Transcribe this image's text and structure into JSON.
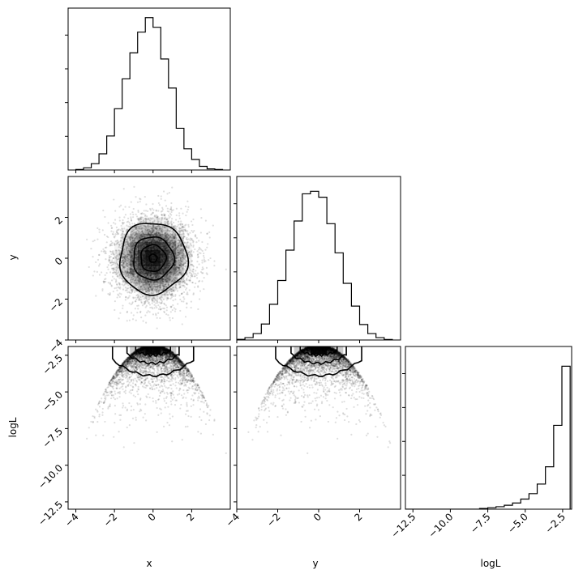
{
  "chart_data": {
    "type": "corner",
    "parameters": [
      "x",
      "y",
      "logL"
    ],
    "labels": {
      "x": "x",
      "y": "y",
      "logL": "logL"
    },
    "ranges": {
      "x": [
        -4.4,
        4.0
      ],
      "y": [
        -4.0,
        4.0
      ],
      "logL": [
        -13.0,
        -1.9
      ]
    },
    "ticks": {
      "x": [
        -4,
        -2,
        0,
        2
      ],
      "y": [
        -4,
        -2,
        0,
        2
      ],
      "logL": [
        -12.5,
        -10.0,
        -7.5,
        -5.0,
        -2.5
      ]
    },
    "tick_labels": {
      "x": [
        "−4",
        "−2",
        "0",
        "2"
      ],
      "y": [
        "−4",
        "−2",
        "0",
        "2"
      ],
      "logL": [
        "−12.5",
        "−10.0",
        "−7.5",
        "−5.0",
        "−2.5"
      ]
    },
    "hist_x": {
      "edges": [
        -4.0,
        -3.6,
        -3.2,
        -2.8,
        -2.4,
        -2.0,
        -1.6,
        -1.2,
        -0.8,
        -0.4,
        0.0,
        0.4,
        0.8,
        1.2,
        1.6,
        2.0,
        2.4,
        2.8,
        3.2,
        3.6
      ],
      "counts": [
        0.3,
        1.3,
        3.8,
        9.7,
        20.4,
        36.7,
        54.6,
        70.2,
        82.6,
        91.3,
        85.5,
        66.5,
        49.1,
        25.0,
        12.7,
        6.3,
        2.2,
        0.7,
        0.3
      ],
      "ylim": [
        0,
        97
      ]
    },
    "hist_y": {
      "edges": [
        -4.0,
        -3.6,
        -3.2,
        -2.8,
        -2.4,
        -2.0,
        -1.6,
        -1.2,
        -0.8,
        -0.4,
        0.0,
        0.4,
        0.8,
        1.2,
        1.6,
        2.0,
        2.4,
        2.8,
        3.2,
        3.6
      ],
      "counts": [
        0.4,
        1.4,
        3.8,
        9.5,
        21.2,
        35.3,
        53.3,
        70.6,
        86.7,
        88.2,
        84.7,
        69.0,
        51.7,
        33.6,
        20.1,
        9.2,
        3.8,
        1.4,
        0.3
      ],
      "ylim": [
        0,
        97
      ]
    },
    "hist_logL": {
      "edges": [
        -13.0,
        -12.45,
        -11.9,
        -11.35,
        -10.8,
        -10.25,
        -9.7,
        -9.15,
        -8.6,
        -8.05,
        -7.5,
        -6.95,
        -6.4,
        -5.85,
        -5.3,
        -4.75,
        -4.2,
        -3.65,
        -3.1,
        -2.55,
        -2.0
      ],
      "counts": [
        0,
        0,
        0,
        0,
        0,
        0,
        0,
        0,
        0,
        0.3,
        0.6,
        1.0,
        1.6,
        2.5,
        4.1,
        6.3,
        10.2,
        17.2,
        34.0,
        58.0
      ],
      "ylim": [
        0,
        66
      ]
    },
    "levels_sigma": [
      0.5,
      1.0,
      1.5,
      2.0
    ],
    "color": "#000000"
  }
}
